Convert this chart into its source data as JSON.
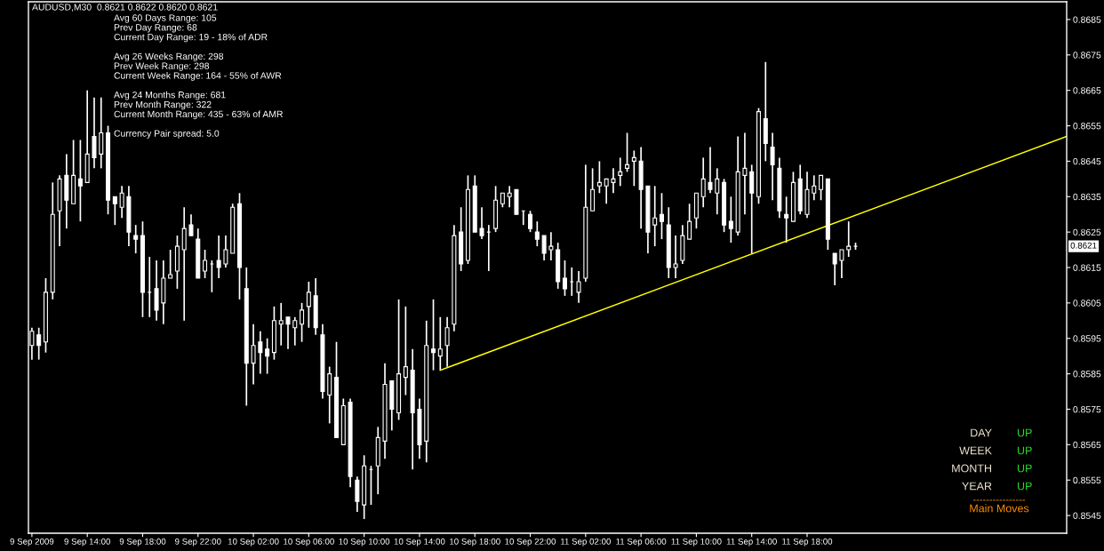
{
  "chart_data": {
    "type": "candlestick",
    "title": "AUDUSD,M30  0.8621 0.8622 0.8620 0.8621",
    "color": "#ffffff",
    "x": [
      "2009-09-09T10:00",
      "2009-09-09T10:30",
      "2009-09-09T11:00",
      "2009-09-09T11:30",
      "2009-09-09T12:00",
      "2009-09-09T12:30",
      "2009-09-09T13:00",
      "2009-09-09T13:30",
      "2009-09-09T14:00",
      "2009-09-09T14:30",
      "2009-09-09T15:00",
      "2009-09-09T15:30",
      "2009-09-09T16:00",
      "2009-09-09T16:30",
      "2009-09-09T17:00",
      "2009-09-09T17:30",
      "2009-09-09T18:00",
      "2009-09-09T18:30",
      "2009-09-09T19:00",
      "2009-09-09T19:30",
      "2009-09-09T20:00",
      "2009-09-09T20:30",
      "2009-09-09T21:00",
      "2009-09-09T21:30",
      "2009-09-09T22:00",
      "2009-09-09T22:30",
      "2009-09-09T23:00",
      "2009-09-09T23:30",
      "2009-09-10T00:00",
      "2009-09-10T00:30",
      "2009-09-10T01:00",
      "2009-09-10T01:30",
      "2009-09-10T02:00",
      "2009-09-10T02:30",
      "2009-09-10T03:00",
      "2009-09-10T03:30",
      "2009-09-10T04:00",
      "2009-09-10T04:30",
      "2009-09-10T05:00",
      "2009-09-10T05:30",
      "2009-09-10T06:00",
      "2009-09-10T06:30",
      "2009-09-10T07:00",
      "2009-09-10T07:30",
      "2009-09-10T08:00",
      "2009-09-10T08:30",
      "2009-09-10T09:00",
      "2009-09-10T09:30",
      "2009-09-10T10:00",
      "2009-09-10T10:30",
      "2009-09-10T11:00",
      "2009-09-10T11:30",
      "2009-09-10T12:00",
      "2009-09-10T12:30",
      "2009-09-10T13:00",
      "2009-09-10T13:30",
      "2009-09-10T14:00",
      "2009-09-10T14:30",
      "2009-09-10T15:00",
      "2009-09-10T15:30",
      "2009-09-10T16:00",
      "2009-09-10T16:30",
      "2009-09-10T17:00",
      "2009-09-10T17:30",
      "2009-09-10T18:00",
      "2009-09-10T18:30",
      "2009-09-10T19:00",
      "2009-09-10T19:30",
      "2009-09-10T20:00",
      "2009-09-10T20:30",
      "2009-09-10T21:00",
      "2009-09-10T21:30",
      "2009-09-10T22:00",
      "2009-09-10T22:30",
      "2009-09-10T23:00",
      "2009-09-10T23:30",
      "2009-09-11T00:00",
      "2009-09-11T00:30",
      "2009-09-11T01:00",
      "2009-09-11T01:30",
      "2009-09-11T02:00",
      "2009-09-11T02:30",
      "2009-09-11T03:00",
      "2009-09-11T03:30",
      "2009-09-11T04:00",
      "2009-09-11T04:30",
      "2009-09-11T05:00",
      "2009-09-11T05:30",
      "2009-09-11T06:00",
      "2009-09-11T06:30",
      "2009-09-11T07:00",
      "2009-09-11T07:30",
      "2009-09-11T08:00",
      "2009-09-11T08:30",
      "2009-09-11T09:00",
      "2009-09-11T09:30",
      "2009-09-11T10:00",
      "2009-09-11T10:30",
      "2009-09-11T11:00",
      "2009-09-11T11:30",
      "2009-09-11T12:00",
      "2009-09-11T12:30",
      "2009-09-11T13:00",
      "2009-09-11T13:30",
      "2009-09-11T14:00",
      "2009-09-11T14:30",
      "2009-09-11T15:00",
      "2009-09-11T15:30",
      "2009-09-11T16:00",
      "2009-09-11T16:30",
      "2009-09-11T17:00",
      "2009-09-11T17:30",
      "2009-09-11T18:00",
      "2009-09-11T18:30",
      "2009-09-11T19:00",
      "2009-09-11T19:30",
      "2009-09-11T20:00",
      "2009-09-11T20:30",
      "2009-09-11T21:00",
      "2009-09-11T21:30"
    ],
    "ohlc": [
      [
        0.8593,
        0.8598,
        0.8589,
        0.8597
      ],
      [
        0.8596,
        0.8598,
        0.8589,
        0.8593
      ],
      [
        0.8594,
        0.8612,
        0.8591,
        0.8608
      ],
      [
        0.8608,
        0.8639,
        0.8606,
        0.863
      ],
      [
        0.8631,
        0.8641,
        0.8621,
        0.864
      ],
      [
        0.8641,
        0.8647,
        0.8626,
        0.8634
      ],
      [
        0.8633,
        0.8651,
        0.8633,
        0.8641
      ],
      [
        0.864,
        0.8651,
        0.8628,
        0.8638
      ],
      [
        0.8639,
        0.8665,
        0.8639,
        0.8647
      ],
      [
        0.8652,
        0.8663,
        0.8643,
        0.8646
      ],
      [
        0.8647,
        0.8663,
        0.8643,
        0.8653
      ],
      [
        0.8653,
        0.8655,
        0.863,
        0.8634
      ],
      [
        0.8635,
        0.8635,
        0.8627,
        0.8633
      ],
      [
        0.8632,
        0.8638,
        0.8629,
        0.8636
      ],
      [
        0.8635,
        0.8638,
        0.8621,
        0.8625
      ],
      [
        0.8624,
        0.8627,
        0.8619,
        0.8623
      ],
      [
        0.8624,
        0.8628,
        0.8601,
        0.8608
      ],
      [
        0.8608,
        0.8618,
        0.8601,
        0.8608
      ],
      [
        0.8609,
        0.8617,
        0.86,
        0.8603
      ],
      [
        0.8605,
        0.8617,
        0.8599,
        0.8612
      ],
      [
        0.8612,
        0.862,
        0.8612,
        0.8613
      ],
      [
        0.8614,
        0.8624,
        0.8609,
        0.8621
      ],
      [
        0.862,
        0.8632,
        0.86,
        0.8626
      ],
      [
        0.8627,
        0.863,
        0.8624,
        0.8624
      ],
      [
        0.8623,
        0.8626,
        0.8612,
        0.8612
      ],
      [
        0.8614,
        0.862,
        0.8612,
        0.8617
      ],
      [
        0.8616,
        0.8617,
        0.8608,
        0.8616
      ],
      [
        0.8617,
        0.8624,
        0.8612,
        0.8615
      ],
      [
        0.8616,
        0.8624,
        0.8615,
        0.862
      ],
      [
        0.8619,
        0.8633,
        0.8619,
        0.8632
      ],
      [
        0.8633,
        0.8636,
        0.8606,
        0.8615
      ],
      [
        0.8609,
        0.8615,
        0.8576,
        0.8588
      ],
      [
        0.8588,
        0.8599,
        0.8582,
        0.8593
      ],
      [
        0.8594,
        0.8597,
        0.8585,
        0.8591
      ],
      [
        0.8592,
        0.8595,
        0.8585,
        0.859
      ],
      [
        0.8591,
        0.8604,
        0.8589,
        0.86
      ],
      [
        0.8599,
        0.8605,
        0.8593,
        0.86
      ],
      [
        0.8601,
        0.8601,
        0.8592,
        0.8599
      ],
      [
        0.8598,
        0.8601,
        0.8593,
        0.86
      ],
      [
        0.8599,
        0.8605,
        0.8594,
        0.8603
      ],
      [
        0.8604,
        0.8611,
        0.8598,
        0.8608
      ],
      [
        0.8607,
        0.8612,
        0.8596,
        0.8598
      ],
      [
        0.8596,
        0.8599,
        0.8578,
        0.858
      ],
      [
        0.8579,
        0.8587,
        0.8571,
        0.8585
      ],
      [
        0.8584,
        0.8594,
        0.8567,
        0.8567
      ],
      [
        0.8565,
        0.8578,
        0.8565,
        0.8576
      ],
      [
        0.8577,
        0.8578,
        0.8553,
        0.8556
      ],
      [
        0.8555,
        0.8556,
        0.8546,
        0.8549
      ],
      [
        0.8548,
        0.8562,
        0.8544,
        0.8559
      ],
      [
        0.8558,
        0.8559,
        0.8548,
        0.8558
      ],
      [
        0.8559,
        0.857,
        0.8551,
        0.8567
      ],
      [
        0.8566,
        0.8588,
        0.8561,
        0.8582
      ],
      [
        0.8583,
        0.8583,
        0.8569,
        0.8575
      ],
      [
        0.8574,
        0.8606,
        0.8572,
        0.8585
      ],
      [
        0.8584,
        0.8604,
        0.8579,
        0.8587
      ],
      [
        0.8586,
        0.8592,
        0.8558,
        0.8574
      ],
      [
        0.8575,
        0.8578,
        0.8561,
        0.8565
      ],
      [
        0.8566,
        0.86,
        0.856,
        0.8593
      ],
      [
        0.8592,
        0.8606,
        0.8586,
        0.8591
      ],
      [
        0.859,
        0.8601,
        0.8586,
        0.8592
      ],
      [
        0.8593,
        0.8601,
        0.8587,
        0.8598
      ],
      [
        0.8599,
        0.8627,
        0.8597,
        0.8624
      ],
      [
        0.8625,
        0.8632,
        0.8614,
        0.8616
      ],
      [
        0.8617,
        0.8641,
        0.8616,
        0.8637
      ],
      [
        0.8638,
        0.8641,
        0.8625,
        0.8625
      ],
      [
        0.8626,
        0.8632,
        0.8623,
        0.8624
      ],
      [
        0.8625,
        0.8627,
        0.8614,
        0.8625
      ],
      [
        0.8626,
        0.8638,
        0.8625,
        0.8634
      ],
      [
        0.8633,
        0.8636,
        0.8632,
        0.8636
      ],
      [
        0.8635,
        0.8638,
        0.8632,
        0.8636
      ],
      [
        0.8637,
        0.8637,
        0.863,
        0.863
      ],
      [
        0.8631,
        0.8631,
        0.8627,
        0.8631
      ],
      [
        0.863,
        0.8631,
        0.8625,
        0.8626
      ],
      [
        0.8625,
        0.8628,
        0.8621,
        0.8623
      ],
      [
        0.8624,
        0.8624,
        0.8617,
        0.8619
      ],
      [
        0.862,
        0.8625,
        0.8617,
        0.8621
      ],
      [
        0.862,
        0.8622,
        0.8609,
        0.8611
      ],
      [
        0.8612,
        0.8617,
        0.8607,
        0.8609
      ],
      [
        0.8611,
        0.8615,
        0.8607,
        0.8611
      ],
      [
        0.8608,
        0.8614,
        0.8605,
        0.8611
      ],
      [
        0.8612,
        0.8644,
        0.8611,
        0.8632
      ],
      [
        0.8631,
        0.8643,
        0.8631,
        0.8637
      ],
      [
        0.8638,
        0.8645,
        0.8636,
        0.8639
      ],
      [
        0.8638,
        0.864,
        0.8633,
        0.864
      ],
      [
        0.8639,
        0.8643,
        0.8636,
        0.864
      ],
      [
        0.8641,
        0.8646,
        0.8638,
        0.8642
      ],
      [
        0.8643,
        0.8653,
        0.8642,
        0.8644
      ],
      [
        0.8645,
        0.8648,
        0.8638,
        0.8646
      ],
      [
        0.8645,
        0.8649,
        0.8626,
        0.8637
      ],
      [
        0.8638,
        0.8638,
        0.8619,
        0.8625
      ],
      [
        0.8627,
        0.8638,
        0.8621,
        0.8629
      ],
      [
        0.863,
        0.8636,
        0.8623,
        0.8628
      ],
      [
        0.8627,
        0.8632,
        0.8612,
        0.8615
      ],
      [
        0.8615,
        0.8624,
        0.8612,
        0.8616
      ],
      [
        0.8617,
        0.8627,
        0.8616,
        0.8624
      ],
      [
        0.8623,
        0.8633,
        0.8623,
        0.8628
      ],
      [
        0.8629,
        0.8636,
        0.8626,
        0.8636
      ],
      [
        0.8635,
        0.8646,
        0.8632,
        0.864
      ],
      [
        0.8639,
        0.8649,
        0.8636,
        0.8637
      ],
      [
        0.8636,
        0.8643,
        0.863,
        0.864
      ],
      [
        0.8639,
        0.864,
        0.8625,
        0.8627
      ],
      [
        0.8628,
        0.8635,
        0.8622,
        0.8626
      ],
      [
        0.8625,
        0.8652,
        0.8624,
        0.8642
      ],
      [
        0.8641,
        0.8653,
        0.863,
        0.8643
      ],
      [
        0.8642,
        0.8644,
        0.8619,
        0.8636
      ],
      [
        0.8635,
        0.866,
        0.8633,
        0.8659
      ],
      [
        0.8657,
        0.8673,
        0.8645,
        0.865
      ],
      [
        0.8649,
        0.8653,
        0.8634,
        0.8644
      ],
      [
        0.8643,
        0.8646,
        0.8629,
        0.8631
      ],
      [
        0.863,
        0.8635,
        0.8622,
        0.8629
      ],
      [
        0.8628,
        0.8642,
        0.8628,
        0.8639
      ],
      [
        0.864,
        0.8644,
        0.863,
        0.8631
      ],
      [
        0.863,
        0.8642,
        0.8629,
        0.8637
      ],
      [
        0.8636,
        0.8641,
        0.8634,
        0.8638
      ],
      [
        0.8637,
        0.8641,
        0.8634,
        0.8641
      ],
      [
        0.864,
        0.864,
        0.862,
        0.8623
      ],
      [
        0.8619,
        0.8619,
        0.861,
        0.8616
      ],
      [
        0.8617,
        0.862,
        0.8612,
        0.862
      ],
      [
        0.862,
        0.8628,
        0.8618,
        0.8621
      ],
      [
        0.8621,
        0.8622,
        0.862,
        0.8621
      ]
    ],
    "series": [
      {
        "type": "line",
        "color": "#ffff00",
        "x": [
          "2009-09-10T15:30",
          "2009-09-12T12:45"
        ],
        "values": [
          0.8586,
          0.8652
        ]
      }
    ],
    "xlim": [
      "2009-09-09T09:45",
      "2009-09-12T12:45"
    ],
    "xticks": [
      {
        "value": "2009-09-09T10:00",
        "label": "9 Sep 2009"
      },
      {
        "value": "2009-09-09T14:00",
        "label": "9 Sep 14:00"
      },
      {
        "value": "2009-09-09T18:00",
        "label": "9 Sep 18:00"
      },
      {
        "value": "2009-09-09T22:00",
        "label": "9 Sep 22:00"
      },
      {
        "value": "2009-09-10T02:00",
        "label": "10 Sep 02:00"
      },
      {
        "value": "2009-09-10T06:00",
        "label": "10 Sep 06:00"
      },
      {
        "value": "2009-09-10T10:00",
        "label": "10 Sep 10:00"
      },
      {
        "value": "2009-09-10T14:00",
        "label": "10 Sep 14:00"
      },
      {
        "value": "2009-09-10T18:00",
        "label": "10 Sep 18:00"
      },
      {
        "value": "2009-09-10T22:00",
        "label": "10 Sep 22:00"
      },
      {
        "value": "2009-09-11T02:00",
        "label": "11 Sep 02:00"
      },
      {
        "value": "2009-09-11T06:00",
        "label": "11 Sep 06:00"
      },
      {
        "value": "2009-09-11T10:00",
        "label": "11 Sep 10:00"
      },
      {
        "value": "2009-09-11T14:00",
        "label": "11 Sep 14:00"
      },
      {
        "value": "2009-09-11T18:00",
        "label": "11 Sep 18:00"
      }
    ],
    "ylim": [
      0.854,
      0.869
    ],
    "yticks": [
      0.8545,
      0.8555,
      0.8565,
      0.8575,
      0.8585,
      0.8595,
      0.8605,
      0.8615,
      0.8625,
      0.8635,
      0.8645,
      0.8655,
      0.8665,
      0.8675,
      0.8685
    ],
    "grid": false,
    "legend": false,
    "annotations": [
      "Avg 60 Days Range: 105\nPrev Day Range: 68\nCurrent Day Range: 19 - 18% of ADR\n\nAvg 26 Weeks Range: 298\nPrev Week Range: 298\nCurrent Week Range: 164 - 55% of AWR\n\nAvg 24 Months Range: 681\nPrev Month Range: 322\nCurrent Month Range: 435 - 63% of AMR\n\nCurrency Pair spread: 5.0",
      "DAY",
      "UP",
      "WEEK",
      "UP",
      "MONTH",
      "UP",
      "YEAR",
      "UP",
      "----------------",
      "Main Moves",
      "0.8621"
    ]
  }
}
